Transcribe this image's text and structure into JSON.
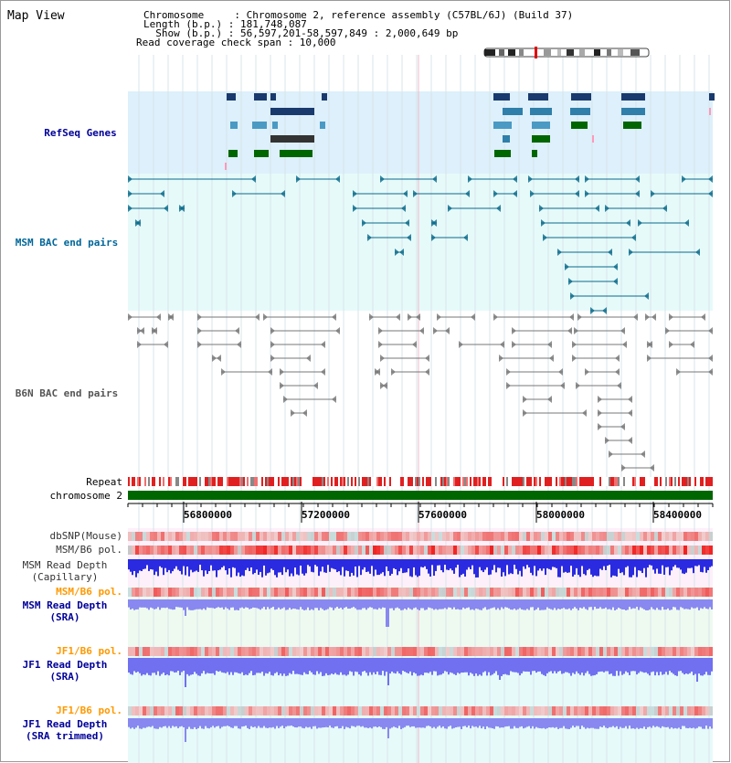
{
  "header": {
    "title": "Map View",
    "chromosome_line": "Chromosome     : Chromosome 2, reference assembly (C57BL/6J) (Build 37)",
    "length_line": "Length (b.p.) : 181,748,087",
    "show_line": "  Show (b.p.) : 56,597,201-58,597,849 : 2,000,649 bp",
    "coverage_line": "Read coverage check span : 10,000"
  },
  "tracks": {
    "refseq": "RefSeq Genes",
    "msm_bac": "MSM BAC end pairs",
    "b6n_bac": "B6N BAC end pairs",
    "repeat": "Repeat",
    "chromosome": "chromosome 2"
  },
  "ruler": {
    "ticks": [
      "56800000",
      "57200000",
      "57600000",
      "58000000",
      "58400000"
    ]
  },
  "lower_tracks": {
    "dbsnp": "dbSNP(Mouse)",
    "msm_b6_pol": "MSM/B6 pol.",
    "msm_read_depth_cap_1": "MSM Read Depth",
    "msm_read_depth_cap_2": "(Capillary)",
    "msm_b6_pol_sra": "MSM/B6 pol.",
    "msm_read_depth_sra_1": "MSM Read Depth",
    "msm_read_depth_sra_2": "(SRA)",
    "jf1_b6_pol": "JF1/B6 pol.",
    "jf1_read_depth_sra_1": "JF1 Read Depth",
    "jf1_read_depth_sra_2": "(SRA)",
    "jf1_b6_pol_trimmed": "JF1/B6 pol.",
    "jf1_read_depth_trim_1": "JF1 Read Depth",
    "jf1_read_depth_trim_2": "(SRA trimmed)"
  },
  "colors": {
    "refseq_bg": "#ddf0fb",
    "bac_bg": "#e6fafa",
    "msm_label": "#006699",
    "b6n_label": "#555555",
    "refseq_label": "#000099",
    "pol_label": "#ff9900",
    "depth_label": "#000099",
    "repeat_red": "#e02020",
    "chrom_green": "#006600"
  }
}
